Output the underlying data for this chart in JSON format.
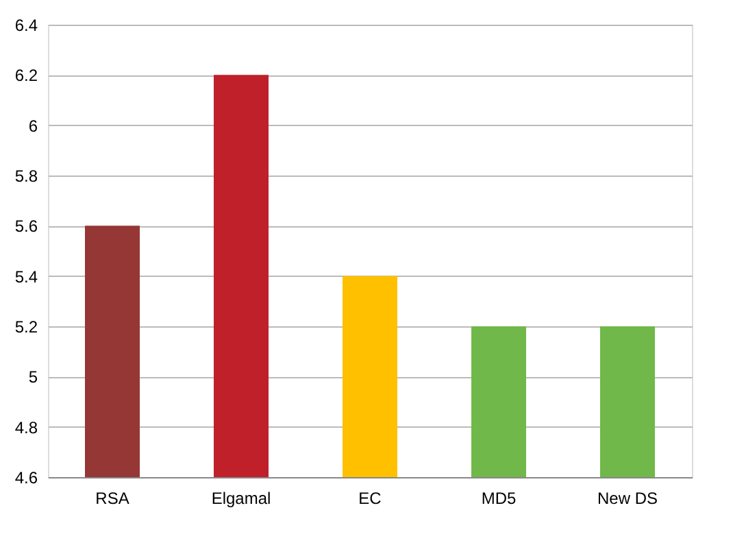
{
  "chart_data": {
    "type": "bar",
    "categories": [
      "RSA",
      "Elgamal",
      "EC",
      "MD5",
      "New DS"
    ],
    "values": [
      5.6,
      6.2,
      5.4,
      5.2,
      5.2
    ],
    "colors": [
      "#953735",
      "#c0202a",
      "#ffc000",
      "#70b84a",
      "#70b84a"
    ],
    "ylim": [
      4.6,
      6.4
    ],
    "yticks": [
      4.6,
      4.8,
      5,
      5.2,
      5.4,
      5.6,
      5.8,
      6,
      6.2,
      6.4
    ],
    "grid": "y",
    "legend": false
  }
}
